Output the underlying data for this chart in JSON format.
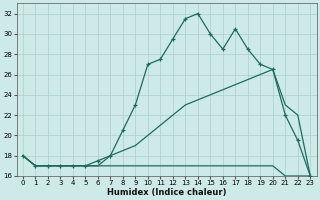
{
  "xlabel": "Humidex (Indice chaleur)",
  "background_color": "#ceeae8",
  "line_color": "#1e6b5e",
  "grid_color": "#aacfcc",
  "xlim": [
    -0.5,
    23.5
  ],
  "ylim": [
    16,
    33
  ],
  "yticks": [
    16,
    18,
    20,
    22,
    24,
    26,
    28,
    30,
    32
  ],
  "xticks": [
    0,
    1,
    2,
    3,
    4,
    5,
    6,
    7,
    8,
    9,
    10,
    11,
    12,
    13,
    14,
    15,
    16,
    17,
    18,
    19,
    20,
    21,
    22,
    23
  ],
  "line1_x": [
    0,
    1,
    2,
    3,
    4,
    5,
    6,
    7,
    8,
    9,
    10,
    11,
    12,
    13,
    14,
    15,
    16,
    17,
    18,
    19,
    20,
    21,
    22,
    23
  ],
  "line1_y": [
    18,
    17,
    17,
    17,
    17,
    17,
    17,
    17,
    17,
    17,
    17,
    17,
    17,
    17,
    17,
    17,
    17,
    17,
    17,
    17,
    17,
    16,
    16,
    16
  ],
  "line2_x": [
    0,
    1,
    2,
    3,
    4,
    5,
    6,
    7,
    8,
    9,
    10,
    11,
    12,
    13,
    14,
    15,
    16,
    17,
    18,
    19,
    20,
    21,
    22,
    23
  ],
  "line2_y": [
    18,
    17,
    17,
    17,
    17,
    17,
    17,
    18,
    18.5,
    19,
    20,
    21,
    22,
    23,
    23.5,
    24,
    24.5,
    25,
    25.5,
    26,
    26.5,
    23,
    22,
    16
  ],
  "line3_x": [
    0,
    1,
    2,
    3,
    4,
    5,
    6,
    7,
    8,
    9,
    10,
    11,
    12,
    13,
    14,
    15,
    16,
    17,
    18,
    19,
    20,
    21,
    22,
    23
  ],
  "line3_y": [
    18,
    17,
    17,
    17,
    17,
    17,
    17.5,
    18,
    20.5,
    23,
    27,
    27.5,
    29.5,
    31.5,
    32,
    30,
    28.5,
    30.5,
    28.5,
    27,
    26.5,
    22,
    19.5,
    16
  ]
}
